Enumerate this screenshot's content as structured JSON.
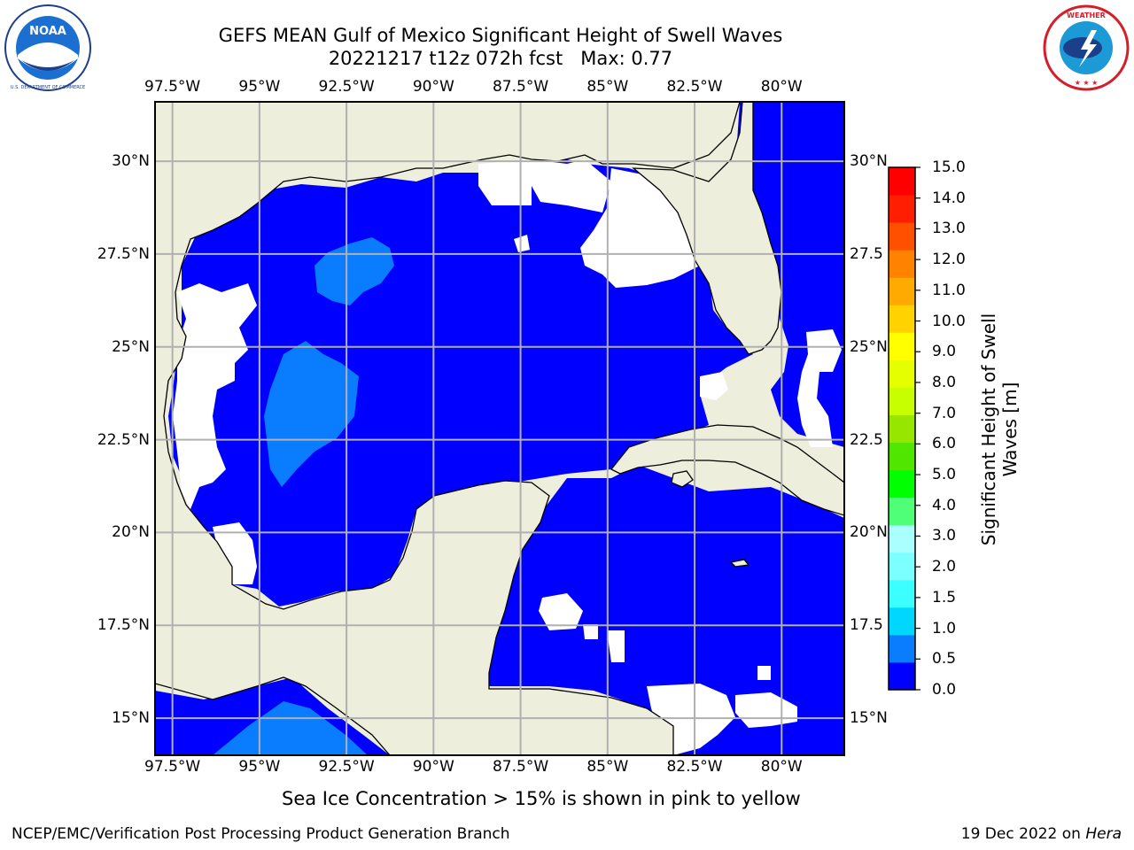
{
  "header": {
    "title_line1": "GEFS MEAN Gulf of Mexico Significant Height of Swell Waves",
    "title_line2": "20221217 t12z 072h fcst   Max: 0.77"
  },
  "logos": {
    "noaa": {
      "icon": "noaa-logo",
      "text": "NOAA",
      "ring_text": "NATIONAL OCEANIC AND ATMOSPHERIC ADMINISTRATION · U.S. DEPARTMENT OF COMMERCE"
    },
    "nws": {
      "icon": "nws-logo",
      "ring_text": "NATIONAL WEATHER SERVICE"
    }
  },
  "map": {
    "lon_labels": [
      "97.5°W",
      "95°W",
      "92.5°W",
      "90°W",
      "87.5°W",
      "85°W",
      "82.5°W",
      "80°W"
    ],
    "lon_values": [
      -97.5,
      -95,
      -92.5,
      -90,
      -87.5,
      -85,
      -82.5,
      -80
    ],
    "lat_labels": [
      "30°N",
      "27.5°N",
      "25°N",
      "22.5°N",
      "20°N",
      "17.5°N",
      "15°N"
    ],
    "lat_values": [
      30,
      27.5,
      25,
      22.5,
      20,
      17.5,
      15
    ],
    "lat_labels_right": [
      "30°N",
      "27.5",
      "25°N",
      "22.5",
      "20°N",
      "17.5",
      "15°N"
    ],
    "extent": {
      "lon": [
        -98,
        -78.2
      ],
      "lat": [
        14,
        31.6
      ]
    },
    "colors": {
      "land": "#eeeedc",
      "sea_low": "#0000ff",
      "sea_mid": "#0a7dff",
      "no_data": "#ffffff",
      "grid": "#b0b0b0"
    }
  },
  "colorbar": {
    "title_line1": "Significant Height of Swell",
    "title_line2": "Waves [m]",
    "ticks": [
      "0.0",
      "0.5",
      "1.0",
      "1.5",
      "2.0",
      "3.0",
      "4.0",
      "5.0",
      "6.0",
      "7.0",
      "8.0",
      "9.0",
      "10.0",
      "11.0",
      "12.0",
      "13.0",
      "14.0",
      "15.0"
    ],
    "colors": [
      "#0000ff",
      "#0a7dff",
      "#00d7ff",
      "#3cffff",
      "#7cffff",
      "#aaffff",
      "#50ff78",
      "#00ff00",
      "#50e600",
      "#96e600",
      "#c8ff00",
      "#e6ff00",
      "#ffff00",
      "#ffd200",
      "#ffaa00",
      "#ff8200",
      "#ff5000",
      "#ff1e00",
      "#ff0000"
    ]
  },
  "footer": {
    "note": "Sea Ice Concentration > 15% is shown in pink to yellow",
    "credit_left": "NCEP/EMC/Verification Post Processing Product Generation Branch",
    "credit_right_date": "19 Dec 2022 on ",
    "credit_right_host": "Hera"
  }
}
